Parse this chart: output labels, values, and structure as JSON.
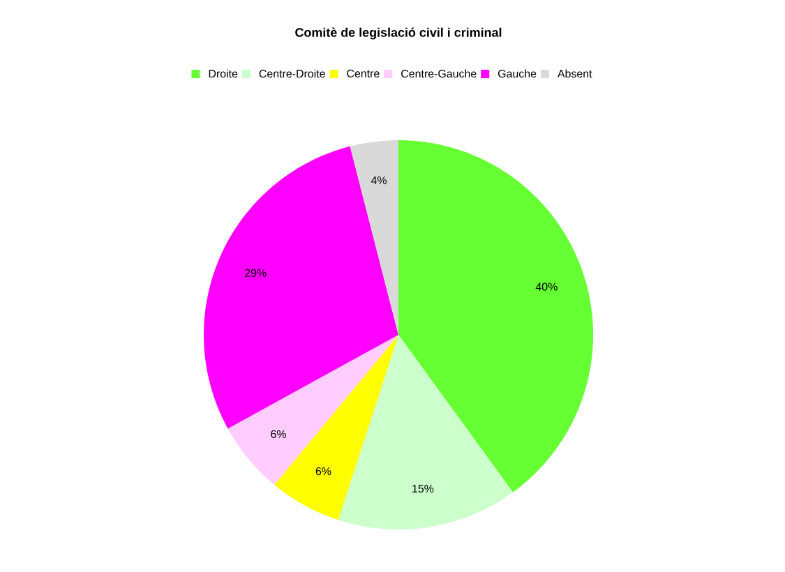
{
  "chart_data": {
    "type": "pie",
    "title": "Comitè de legislació civil i criminal",
    "categories": [
      "Droite",
      "Centre-Droite",
      "Centre",
      "Centre-Gauche",
      "Gauche",
      "Absent"
    ],
    "values": [
      40,
      15,
      6,
      6,
      29,
      4
    ],
    "value_labels": [
      "40%",
      "15%",
      "6%",
      "6%",
      "29%",
      "4%"
    ],
    "colors": [
      "#66ff33",
      "#ccffcc",
      "#ffff00",
      "#ffccff",
      "#ff00ff",
      "#d9d9d9"
    ],
    "legend": "top"
  }
}
